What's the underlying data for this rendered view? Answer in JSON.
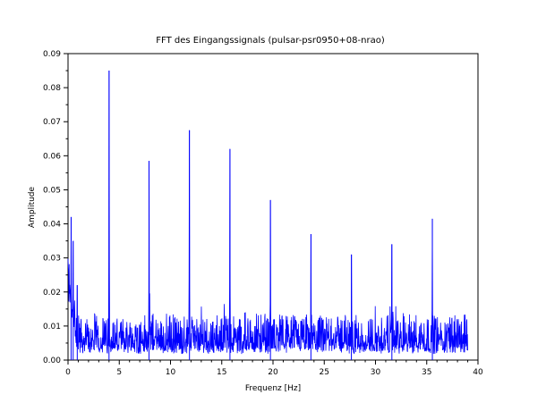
{
  "chart_data": {
    "type": "line",
    "title": "FFT des Eingangssignals (pulsar-psr0950+08-nrao)",
    "xlabel": "Frequenz [Hz]",
    "ylabel": "Amplitude",
    "xlim": [
      0,
      40
    ],
    "ylim": [
      0,
      0.09
    ],
    "x_ticks": [
      "0",
      "5",
      "10",
      "15",
      "20",
      "25",
      "30",
      "35",
      "40"
    ],
    "y_ticks": [
      "0.00",
      "0.01",
      "0.02",
      "0.03",
      "0.04",
      "0.05",
      "0.06",
      "0.07",
      "0.08",
      "0.09"
    ],
    "grid": false,
    "series": [
      {
        "color": "#0000ff",
        "x_start": 0,
        "x_end": 39,
        "noise_floor": 0.007,
        "peaks": [
          {
            "x": 0.3,
            "y": 0.042
          },
          {
            "x": 0.5,
            "y": 0.035
          },
          {
            "x": 0.9,
            "y": 0.022
          },
          {
            "x": 4.0,
            "y": 0.085
          },
          {
            "x": 7.9,
            "y": 0.0585
          },
          {
            "x": 11.85,
            "y": 0.0675
          },
          {
            "x": 15.8,
            "y": 0.062
          },
          {
            "x": 19.75,
            "y": 0.047
          },
          {
            "x": 23.7,
            "y": 0.037
          },
          {
            "x": 27.65,
            "y": 0.031
          },
          {
            "x": 31.6,
            "y": 0.034
          },
          {
            "x": 35.55,
            "y": 0.0415
          }
        ]
      }
    ]
  }
}
